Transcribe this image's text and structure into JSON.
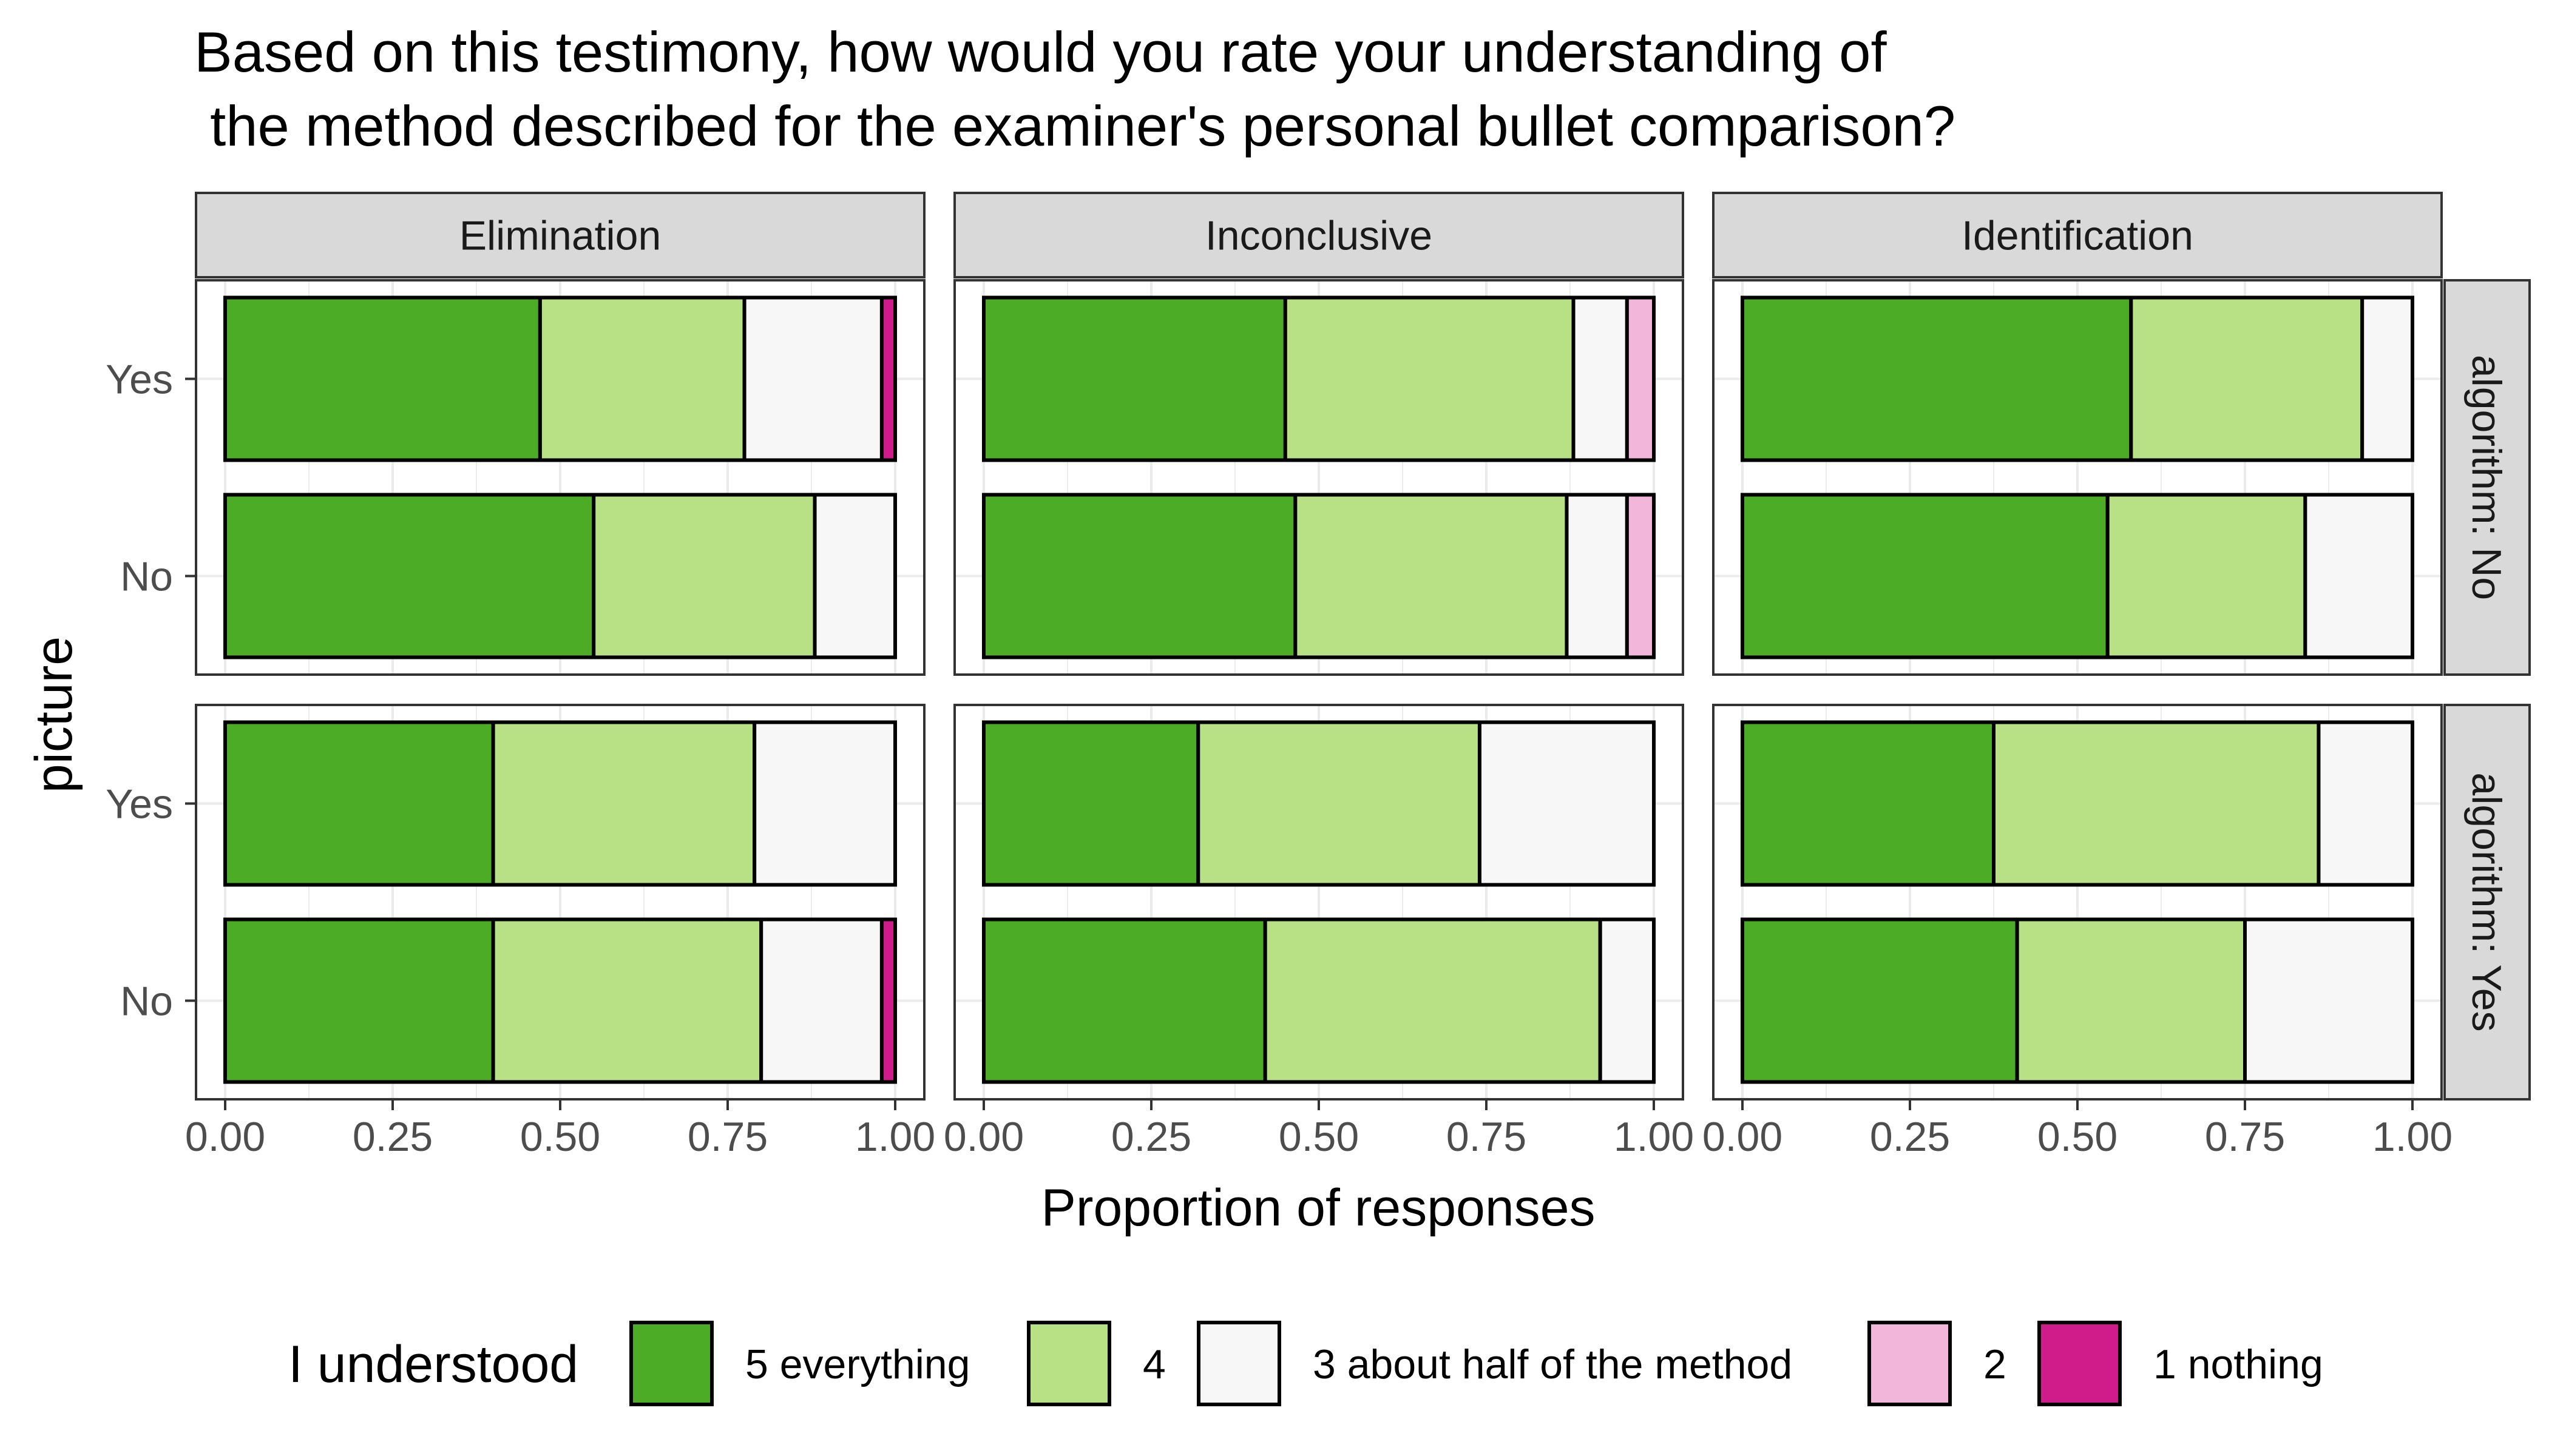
{
  "chart_data": {
    "type": "bar",
    "orientation": "horizontal",
    "stacked": true,
    "title_lines": [
      "Based on this testimony, how would you rate your understanding of",
      " the method described for the examiner's personal bullet comparison?"
    ],
    "xlabel": "Proportion of responses",
    "ylabel": "picture",
    "xlim": [
      0,
      1
    ],
    "x_ticks": [
      "0.00",
      "0.25",
      "0.50",
      "0.75",
      "1.00"
    ],
    "x_tick_values": [
      0,
      0.25,
      0.5,
      0.75,
      1
    ],
    "categories": [
      "Yes",
      "No"
    ],
    "facet_columns": [
      "Elimination",
      "Inconclusive",
      "Identification"
    ],
    "facet_rows": [
      "algorithm: No",
      "algorithm: Yes"
    ],
    "grid": true,
    "legend": {
      "title": "I understood",
      "position": "bottom",
      "items": [
        {
          "label": "5  everything",
          "color": "#4dac26"
        },
        {
          "label": "4",
          "color": "#b8e186"
        },
        {
          "label": "3  about half of the method",
          "color": "#f7f7f7"
        },
        {
          "label": "2",
          "color": "#f1b6da"
        },
        {
          "label": "1  nothing",
          "color": "#d01c8b"
        }
      ]
    },
    "series_order": [
      "5  everything",
      "4",
      "3  about half of the method",
      "2",
      "1  nothing"
    ],
    "panels": [
      {
        "row": "algorithm: No",
        "column": "Elimination",
        "bars": [
          {
            "category": "Yes",
            "values": [
              0.47,
              0.305,
              0.205,
              0.0,
              0.02
            ]
          },
          {
            "category": "No",
            "values": [
              0.55,
              0.33,
              0.12,
              0.0,
              0.0
            ]
          }
        ]
      },
      {
        "row": "algorithm: No",
        "column": "Inconclusive",
        "bars": [
          {
            "category": "Yes",
            "values": [
              0.45,
              0.43,
              0.08,
              0.04,
              0.0
            ]
          },
          {
            "category": "No",
            "values": [
              0.465,
              0.405,
              0.09,
              0.04,
              0.0
            ]
          }
        ]
      },
      {
        "row": "algorithm: No",
        "column": "Identification",
        "bars": [
          {
            "category": "Yes",
            "values": [
              0.58,
              0.345,
              0.075,
              0.0,
              0.0
            ]
          },
          {
            "category": "No",
            "values": [
              0.545,
              0.295,
              0.16,
              0.0,
              0.0
            ]
          }
        ]
      },
      {
        "row": "algorithm: Yes",
        "column": "Elimination",
        "bars": [
          {
            "category": "Yes",
            "values": [
              0.4,
              0.39,
              0.21,
              0.0,
              0.0
            ]
          },
          {
            "category": "No",
            "values": [
              0.4,
              0.4,
              0.18,
              0.0,
              0.02
            ]
          }
        ]
      },
      {
        "row": "algorithm: Yes",
        "column": "Inconclusive",
        "bars": [
          {
            "category": "Yes",
            "values": [
              0.32,
              0.42,
              0.26,
              0.0,
              0.0
            ]
          },
          {
            "category": "No",
            "values": [
              0.42,
              0.5,
              0.08,
              0.0,
              0.0
            ]
          }
        ]
      },
      {
        "row": "algorithm: Yes",
        "column": "Identification",
        "bars": [
          {
            "category": "Yes",
            "values": [
              0.375,
              0.485,
              0.14,
              0.0,
              0.0
            ]
          },
          {
            "category": "No",
            "values": [
              0.41,
              0.34,
              0.25,
              0.0,
              0.0
            ]
          }
        ]
      }
    ]
  }
}
